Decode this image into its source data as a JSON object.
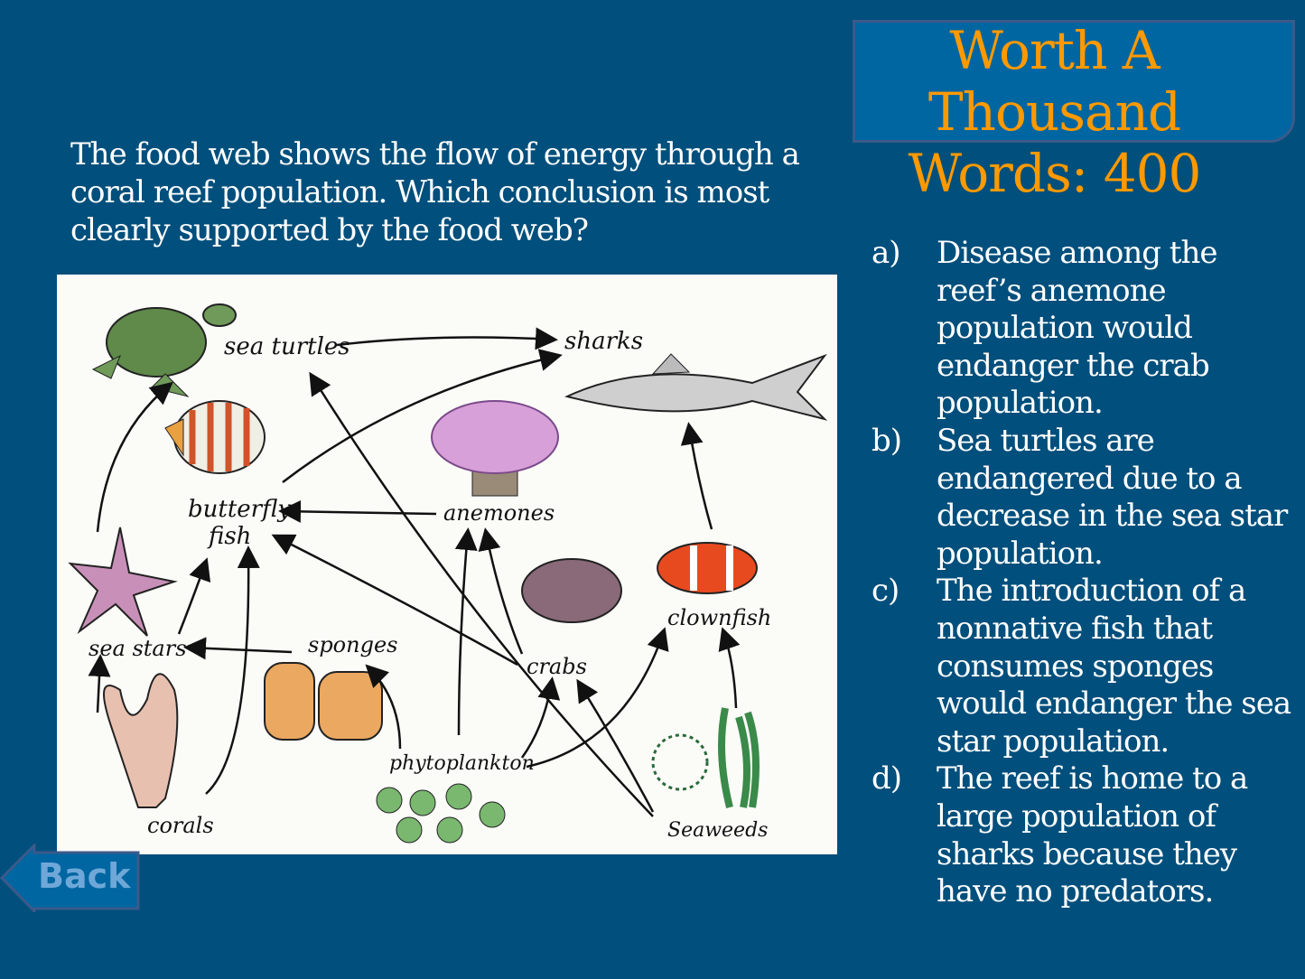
{
  "header": {
    "title_line1": "Worth A Thousand",
    "title_line2": "Words: 400"
  },
  "question": "The food web shows the flow of energy through a coral reef population. Which conclusion is most clearly supported by the food web?",
  "figure": {
    "labels": {
      "sea_turtles": "sea turtles",
      "sharks": "sharks",
      "butterfly_fish_1": "butterfly",
      "butterfly_fish_2": "fish",
      "anemones": "anemones",
      "sea_stars": "sea stars",
      "sponges": "sponges",
      "crabs": "crabs",
      "clownfish": "clownfish",
      "phytoplankton": "phytoplankton",
      "corals": "corals",
      "seaweeds": "Seaweeds"
    }
  },
  "answers": [
    {
      "letter": "a)",
      "text": "Disease among the reef’s anemone population would endanger the crab population."
    },
    {
      "letter": "b)",
      "text": "Sea turtles are endangered due to a decrease in the sea star population."
    },
    {
      "letter": "c)",
      "text": "The introduction of a nonnative fish that consumes sponges would endanger the sea star population."
    },
    {
      "letter": "d)",
      "text": "The reef is home to a large population of sharks because they have no predators."
    }
  ],
  "back_button": {
    "label": "Back"
  },
  "colors": {
    "background": "#004f7c",
    "title": "#ff9900",
    "title_box": "#0066a1",
    "back_text": "#6fa8d8"
  }
}
